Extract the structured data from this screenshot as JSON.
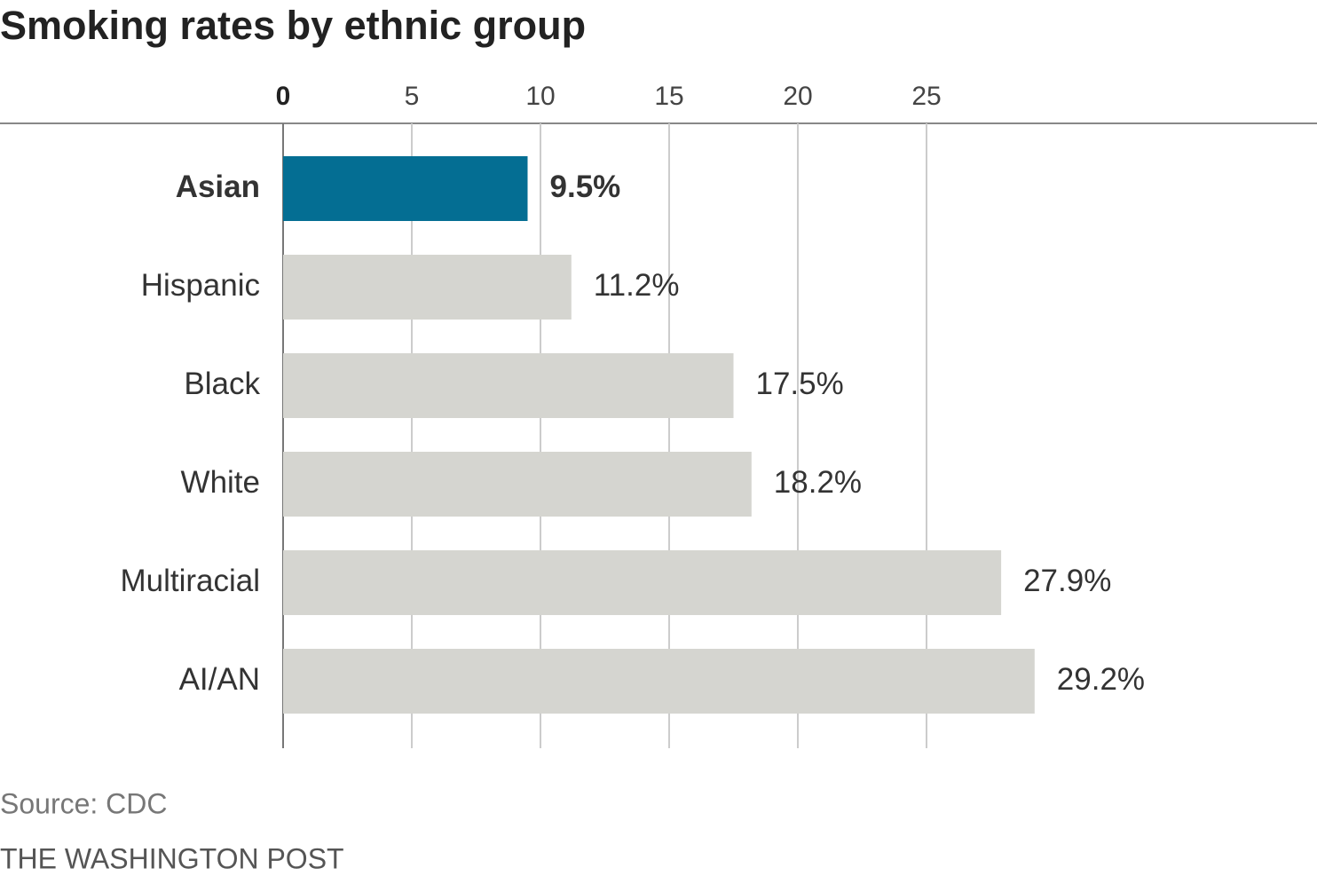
{
  "chart_data": {
    "type": "bar",
    "orientation": "horizontal",
    "title": "Smoking rates by ethnic group",
    "categories": [
      "Asian",
      "Hispanic",
      "Black",
      "White",
      "Multiracial",
      "AI/AN"
    ],
    "values": [
      9.5,
      11.2,
      17.5,
      18.2,
      27.9,
      29.2
    ],
    "value_labels": [
      "9.5%",
      "11.2%",
      "17.5%",
      "18.2%",
      "27.9%",
      "29.2%"
    ],
    "colors": [
      "#046e93",
      "#d5d5d0",
      "#d5d5d0",
      "#d5d5d0",
      "#d5d5d0",
      "#d5d5d0"
    ],
    "xlim": [
      0,
      40
    ],
    "xticks": [
      0,
      5,
      10,
      15,
      20,
      25
    ],
    "grid": true,
    "source": "Source: CDC",
    "credit": "THE WASHINGTON POST"
  }
}
